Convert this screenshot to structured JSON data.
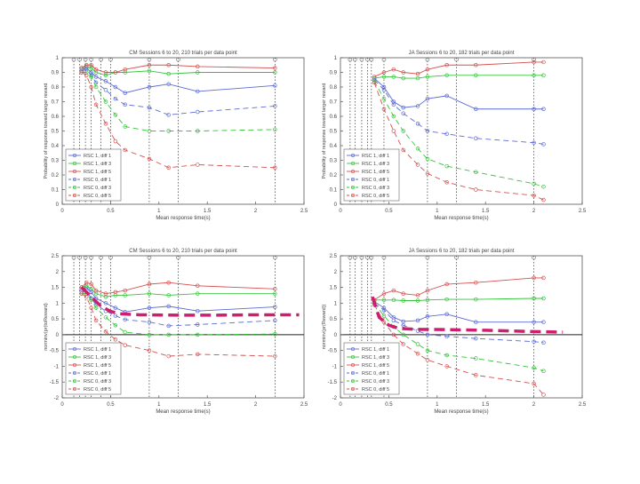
{
  "chart_data": [
    {
      "type": "line",
      "title": "CM Sessions 6 to 20, 210 trials per data point",
      "xlabel": "Mean response time(s)",
      "ylabel": "Probability of response toward larger reward",
      "xlim": [
        0,
        2.5
      ],
      "ylim": [
        0,
        1
      ],
      "xticks": [
        "0",
        "0.5",
        "1",
        "1.5",
        "2",
        "2.5"
      ],
      "yticks": [
        "0",
        "0.1",
        "0.2",
        "0.3",
        "0.4",
        "0.5",
        "0.6",
        "0.7",
        "0.8",
        "0.9",
        "1"
      ],
      "vlines": [
        0.12,
        0.18,
        0.24,
        0.3,
        0.4,
        0.5,
        0.9,
        1.2,
        2.2
      ],
      "legend": "bottom-left",
      "series": [
        {
          "name": "RSC 1, diff 1",
          "color": "#5b6bd6",
          "dash": "",
          "x": [
            0.2,
            0.25,
            0.3,
            0.35,
            0.45,
            0.55,
            0.65,
            0.9,
            1.1,
            1.4,
            2.2
          ],
          "y": [
            0.92,
            0.93,
            0.9,
            0.87,
            0.84,
            0.8,
            0.76,
            0.8,
            0.82,
            0.77,
            0.81
          ]
        },
        {
          "name": "RSC 1, diff 3",
          "color": "#35c43a",
          "dash": "",
          "x": [
            0.2,
            0.25,
            0.3,
            0.35,
            0.45,
            0.55,
            0.65,
            0.9,
            1.1,
            1.4,
            2.2
          ],
          "y": [
            0.93,
            0.94,
            0.93,
            0.9,
            0.88,
            0.9,
            0.9,
            0.91,
            0.89,
            0.9,
            0.9
          ]
        },
        {
          "name": "RSC 1, diff 5",
          "color": "#d65050",
          "dash": "",
          "x": [
            0.2,
            0.25,
            0.3,
            0.35,
            0.45,
            0.55,
            0.65,
            0.9,
            1.1,
            1.4,
            2.2
          ],
          "y": [
            0.93,
            0.95,
            0.95,
            0.92,
            0.9,
            0.9,
            0.92,
            0.95,
            0.95,
            0.94,
            0.93
          ]
        },
        {
          "name": "RSC 0, diff 1",
          "color": "#5b6bd6",
          "dash": "6,4",
          "x": [
            0.2,
            0.25,
            0.3,
            0.35,
            0.45,
            0.55,
            0.65,
            0.9,
            1.1,
            1.4,
            2.2
          ],
          "y": [
            0.91,
            0.92,
            0.88,
            0.83,
            0.78,
            0.72,
            0.68,
            0.66,
            0.61,
            0.63,
            0.67
          ]
        },
        {
          "name": "RSC 0, diff 3",
          "color": "#35c43a",
          "dash": "6,4",
          "x": [
            0.2,
            0.25,
            0.3,
            0.35,
            0.45,
            0.55,
            0.65,
            0.9,
            1.1,
            1.4,
            2.2
          ],
          "y": [
            0.9,
            0.9,
            0.87,
            0.8,
            0.7,
            0.61,
            0.53,
            0.5,
            0.5,
            0.5,
            0.51
          ]
        },
        {
          "name": "RSC 0, diff 5",
          "color": "#d65050",
          "dash": "6,4",
          "x": [
            0.2,
            0.25,
            0.3,
            0.35,
            0.45,
            0.55,
            0.65,
            0.9,
            1.1,
            1.4,
            2.2
          ],
          "y": [
            0.9,
            0.88,
            0.8,
            0.68,
            0.55,
            0.43,
            0.37,
            0.31,
            0.25,
            0.27,
            0.25
          ]
        }
      ]
    },
    {
      "type": "line",
      "title": "JA Sessions 6 to 20, 182 trials per data point",
      "xlabel": "Mean response time(s)",
      "ylabel": "Probability of response toward larger reward",
      "xlim": [
        0,
        2.5
      ],
      "ylim": [
        0,
        1
      ],
      "xticks": [
        "0",
        "0.5",
        "1",
        "1.5",
        "2",
        "2.5"
      ],
      "yticks": [
        "0",
        "0.1",
        "0.2",
        "0.3",
        "0.4",
        "0.5",
        "0.6",
        "0.7",
        "0.8",
        "0.9",
        "1"
      ],
      "vlines": [
        0.1,
        0.15,
        0.22,
        0.28,
        0.32,
        0.45,
        0.9,
        1.2,
        2.0
      ],
      "legend": "bottom-left",
      "series": [
        {
          "name": "RSC 1, diff 1",
          "color": "#5b6bd6",
          "dash": "",
          "x": [
            0.35,
            0.45,
            0.55,
            0.65,
            0.8,
            0.9,
            1.1,
            1.4,
            2.0,
            2.1
          ],
          "y": [
            0.86,
            0.8,
            0.7,
            0.66,
            0.67,
            0.72,
            0.74,
            0.65,
            0.65,
            0.65
          ]
        },
        {
          "name": "RSC 1, diff 3",
          "color": "#35c43a",
          "dash": "",
          "x": [
            0.35,
            0.45,
            0.55,
            0.65,
            0.8,
            0.9,
            1.1,
            1.4,
            2.0,
            2.1
          ],
          "y": [
            0.86,
            0.87,
            0.87,
            0.86,
            0.86,
            0.87,
            0.88,
            0.88,
            0.88,
            0.88
          ]
        },
        {
          "name": "RSC 1, diff 5",
          "color": "#d65050",
          "dash": "",
          "x": [
            0.35,
            0.45,
            0.55,
            0.65,
            0.8,
            0.9,
            1.1,
            1.4,
            2.0,
            2.1
          ],
          "y": [
            0.87,
            0.9,
            0.92,
            0.9,
            0.89,
            0.92,
            0.95,
            0.95,
            0.97,
            0.97
          ]
        },
        {
          "name": "RSC 0, diff 1",
          "color": "#5b6bd6",
          "dash": "6,4",
          "x": [
            0.35,
            0.45,
            0.55,
            0.65,
            0.8,
            0.9,
            1.1,
            1.4,
            2.0,
            2.1
          ],
          "y": [
            0.85,
            0.78,
            0.68,
            0.62,
            0.55,
            0.5,
            0.48,
            0.45,
            0.42,
            0.41
          ]
        },
        {
          "name": "RSC 0, diff 3",
          "color": "#35c43a",
          "dash": "6,4",
          "x": [
            0.35,
            0.45,
            0.55,
            0.65,
            0.8,
            0.9,
            1.1,
            1.4,
            2.0,
            2.1
          ],
          "y": [
            0.84,
            0.72,
            0.6,
            0.5,
            0.38,
            0.31,
            0.26,
            0.22,
            0.14,
            0.12
          ]
        },
        {
          "name": "RSC 0, diff 5",
          "color": "#d65050",
          "dash": "6,4",
          "x": [
            0.35,
            0.45,
            0.55,
            0.65,
            0.8,
            0.9,
            1.1,
            1.4,
            2.0,
            2.1
          ],
          "y": [
            0.83,
            0.65,
            0.5,
            0.37,
            0.27,
            0.21,
            0.15,
            0.1,
            0.06,
            0.03
          ]
        }
      ]
    },
    {
      "type": "line",
      "title": "CM Sessions 6 to 20, 210 trials per data point",
      "xlabel": "Mean response time(s)",
      "ylabel": "norminv(pr(toReward)",
      "xlim": [
        0,
        2.5
      ],
      "ylim": [
        -2,
        2.5
      ],
      "xticks": [
        "0",
        "0.5",
        "1",
        "1.5",
        "2",
        "2.5"
      ],
      "yticks": [
        "-2",
        "-1.5",
        "-1",
        "-0.5",
        "0",
        "0.5",
        "1",
        "1.5",
        "2",
        "2.5"
      ],
      "vlines": [
        0.12,
        0.18,
        0.24,
        0.3,
        0.4,
        0.5,
        0.9,
        1.2,
        2.2
      ],
      "zero_line": true,
      "legend": "bottom-left",
      "series": [
        {
          "name": "RSC 1, diff 1",
          "color": "#5b6bd6",
          "dash": "",
          "x": [
            0.2,
            0.25,
            0.3,
            0.35,
            0.45,
            0.55,
            0.65,
            0.9,
            1.1,
            1.4,
            2.2
          ],
          "y": [
            1.45,
            1.5,
            1.35,
            1.15,
            1.0,
            0.85,
            0.72,
            0.85,
            0.9,
            0.75,
            0.88
          ]
        },
        {
          "name": "RSC 1, diff 3",
          "color": "#35c43a",
          "dash": "",
          "x": [
            0.2,
            0.25,
            0.3,
            0.35,
            0.45,
            0.55,
            0.65,
            0.9,
            1.1,
            1.4,
            2.2
          ],
          "y": [
            1.5,
            1.55,
            1.45,
            1.3,
            1.2,
            1.25,
            1.25,
            1.3,
            1.25,
            1.3,
            1.3
          ]
        },
        {
          "name": "RSC 1, diff 5",
          "color": "#d65050",
          "dash": "",
          "x": [
            0.2,
            0.25,
            0.3,
            0.35,
            0.45,
            0.55,
            0.65,
            0.9,
            1.1,
            1.4,
            2.2
          ],
          "y": [
            1.5,
            1.65,
            1.6,
            1.4,
            1.3,
            1.35,
            1.4,
            1.6,
            1.65,
            1.55,
            1.45
          ]
        },
        {
          "name": "RSC 0, diff 1",
          "color": "#5b6bd6",
          "dash": "6,4",
          "x": [
            0.2,
            0.25,
            0.3,
            0.35,
            0.45,
            0.55,
            0.65,
            0.9,
            1.1,
            1.4,
            2.2
          ],
          "y": [
            1.35,
            1.4,
            1.15,
            0.95,
            0.75,
            0.6,
            0.48,
            0.4,
            0.28,
            0.32,
            0.45
          ]
        },
        {
          "name": "RSC 0, diff 3",
          "color": "#35c43a",
          "dash": "6,4",
          "x": [
            0.2,
            0.25,
            0.3,
            0.35,
            0.45,
            0.55,
            0.65,
            0.9,
            1.1,
            1.4,
            2.2
          ],
          "y": [
            1.3,
            1.3,
            1.1,
            0.85,
            0.55,
            0.3,
            0.08,
            0.0,
            0.0,
            0.0,
            0.02
          ]
        },
        {
          "name": "RSC 0, diff 5",
          "color": "#d65050",
          "dash": "6,4",
          "x": [
            0.2,
            0.25,
            0.3,
            0.35,
            0.45,
            0.55,
            0.65,
            0.9,
            1.1,
            1.4,
            2.2
          ],
          "y": [
            1.3,
            1.2,
            0.85,
            0.45,
            0.1,
            -0.15,
            -0.33,
            -0.5,
            -0.68,
            -0.62,
            -0.68
          ]
        }
      ],
      "annotation": {
        "color": "#cc1f70",
        "x": [
          0.2,
          0.3,
          0.4,
          0.5,
          0.6,
          0.8,
          1.2,
          1.6,
          2.0,
          2.45
        ],
        "y": [
          1.5,
          1.2,
          0.9,
          0.74,
          0.66,
          0.63,
          0.62,
          0.62,
          0.63,
          0.63
        ]
      }
    },
    {
      "type": "line",
      "title": "JA Sessions 6 to 20, 182 trials per data point",
      "xlabel": "Mean response time(s)",
      "ylabel": "norminv(pr(Reward))",
      "xlim": [
        0,
        2.5
      ],
      "ylim": [
        -2,
        2.5
      ],
      "xticks": [
        "0",
        "0.5",
        "1",
        "1.5",
        "2",
        "2.5"
      ],
      "yticks": [
        "-2",
        "-1.5",
        "-1",
        "-0.5",
        "0",
        "0.5",
        "1",
        "1.5",
        "2",
        "2.5"
      ],
      "vlines": [
        0.1,
        0.15,
        0.22,
        0.28,
        0.32,
        0.45,
        0.9,
        1.2,
        2.0
      ],
      "zero_line": true,
      "legend": "bottom-left",
      "series": [
        {
          "name": "RSC 1, diff 1",
          "color": "#5b6bd6",
          "dash": "",
          "x": [
            0.35,
            0.45,
            0.55,
            0.65,
            0.8,
            0.9,
            1.1,
            1.4,
            2.0,
            2.1
          ],
          "y": [
            1.05,
            0.85,
            0.55,
            0.42,
            0.45,
            0.58,
            0.65,
            0.4,
            0.4,
            0.4
          ]
        },
        {
          "name": "RSC 1, diff 3",
          "color": "#35c43a",
          "dash": "",
          "x": [
            0.35,
            0.45,
            0.55,
            0.65,
            0.8,
            0.9,
            1.1,
            1.4,
            2.0,
            2.1
          ],
          "y": [
            1.1,
            1.1,
            1.1,
            1.08,
            1.08,
            1.1,
            1.12,
            1.12,
            1.15,
            1.15
          ]
        },
        {
          "name": "RSC 1, diff 5",
          "color": "#d65050",
          "dash": "",
          "x": [
            0.35,
            0.45,
            0.55,
            0.65,
            0.8,
            0.9,
            1.1,
            1.4,
            2.0,
            2.1
          ],
          "y": [
            1.1,
            1.3,
            1.4,
            1.3,
            1.25,
            1.4,
            1.6,
            1.65,
            1.8,
            1.8
          ]
        },
        {
          "name": "RSC 0, diff 1",
          "color": "#5b6bd6",
          "dash": "6,4",
          "x": [
            0.35,
            0.45,
            0.55,
            0.65,
            0.8,
            0.9,
            1.1,
            1.4,
            2.0,
            2.1
          ],
          "y": [
            1.0,
            0.78,
            0.45,
            0.3,
            0.12,
            0.0,
            -0.05,
            -0.12,
            -0.22,
            -0.25
          ]
        },
        {
          "name": "RSC 0, diff 3",
          "color": "#35c43a",
          "dash": "6,4",
          "x": [
            0.35,
            0.45,
            0.55,
            0.65,
            0.8,
            0.9,
            1.1,
            1.4,
            2.0,
            2.1
          ],
          "y": [
            1.0,
            0.6,
            0.25,
            0.0,
            -0.3,
            -0.5,
            -0.65,
            -0.75,
            -1.05,
            -1.15
          ]
        },
        {
          "name": "RSC 0, diff 5",
          "color": "#d65050",
          "dash": "6,4",
          "x": [
            0.35,
            0.45,
            0.55,
            0.65,
            0.8,
            0.9,
            1.1,
            1.4,
            2.0,
            2.1
          ],
          "y": [
            0.95,
            0.4,
            0.0,
            -0.3,
            -0.6,
            -0.8,
            -1.0,
            -1.28,
            -1.55,
            -1.9
          ]
        }
      ],
      "annotation": {
        "color": "#cc1f70",
        "x": [
          0.33,
          0.4,
          0.5,
          0.6,
          0.8,
          1.1,
          1.5,
          2.0,
          2.3
        ],
        "y": [
          1.2,
          0.55,
          0.3,
          0.2,
          0.17,
          0.16,
          0.14,
          0.1,
          0.08
        ]
      }
    }
  ]
}
